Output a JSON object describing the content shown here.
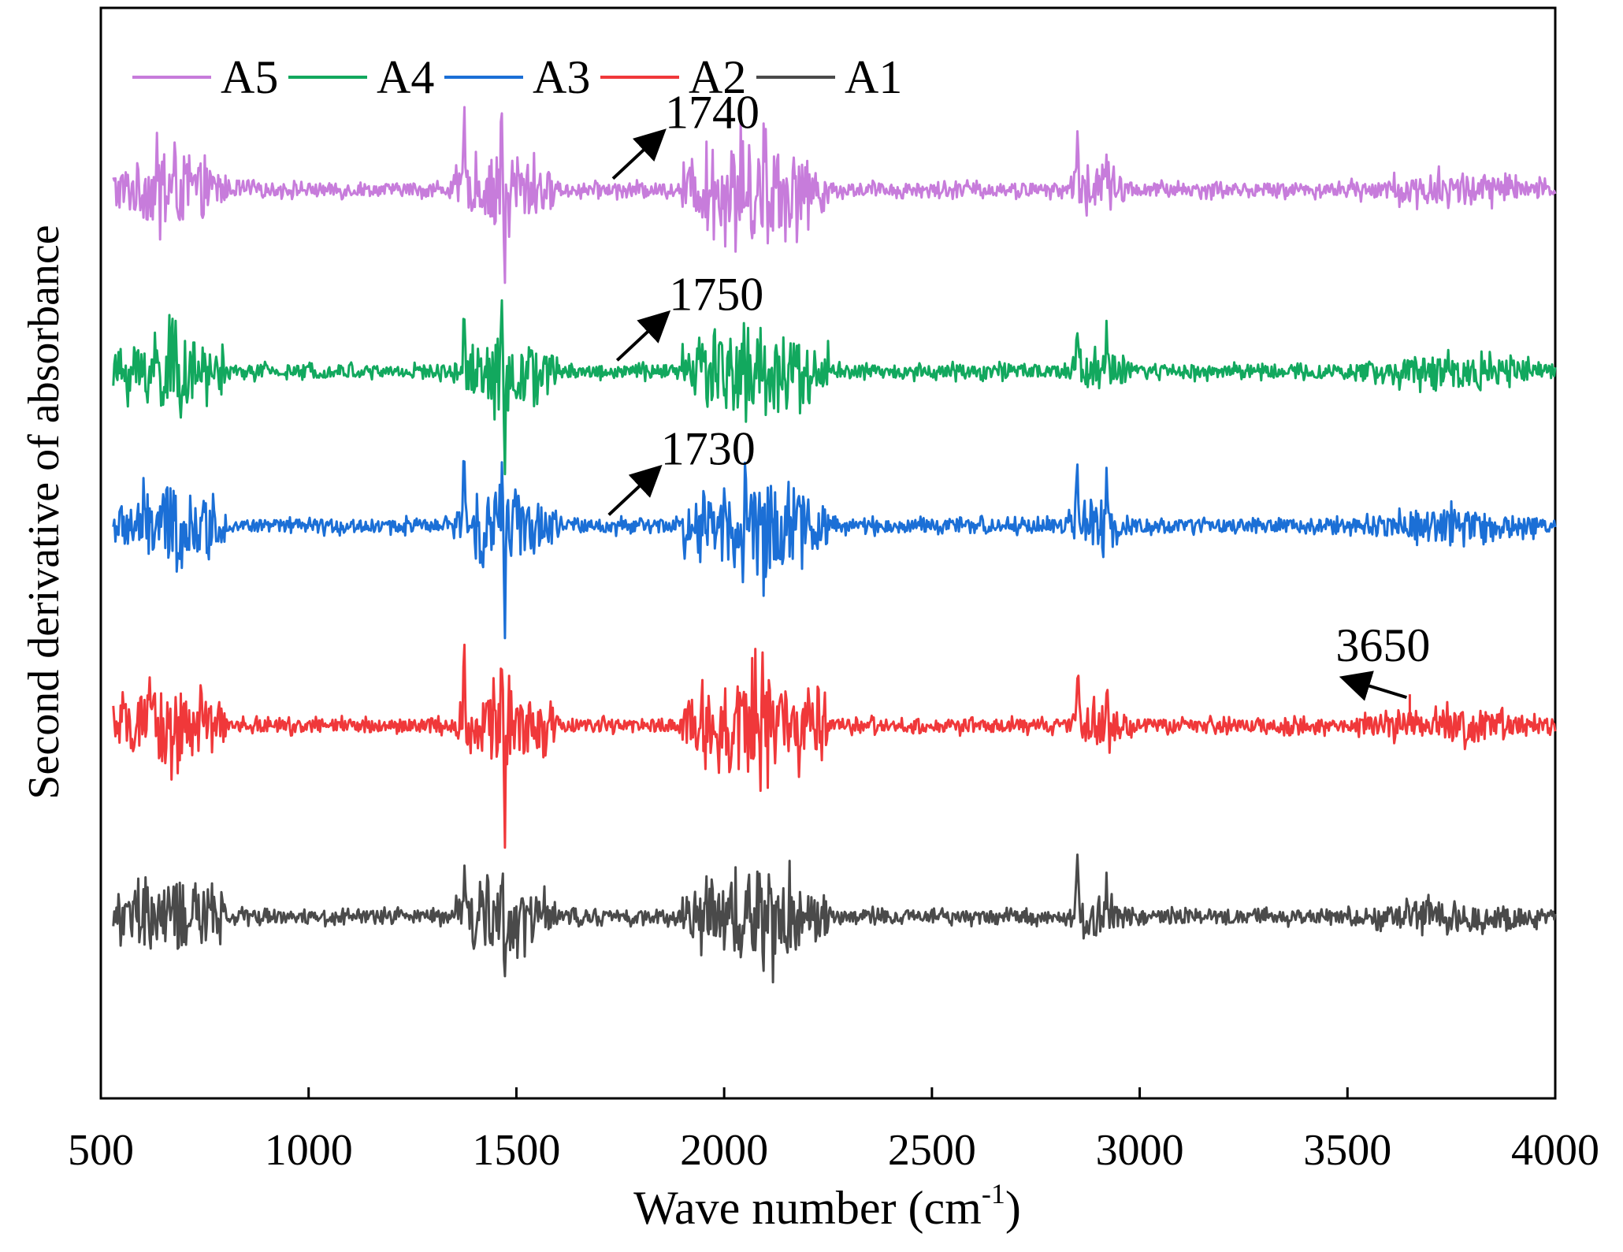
{
  "chart_data": {
    "type": "line",
    "title": "",
    "xlabel": "Wave number (cm",
    "xlabel_sup": "-1",
    "xlabel_close": ")",
    "ylabel": "Second derivative of absorbance",
    "xlim": [
      500,
      4000
    ],
    "ylim": [
      -1,
      5
    ],
    "x_ticks": [
      500,
      1000,
      1500,
      2000,
      2500,
      3000,
      3500,
      4000
    ],
    "x_tick_labels": [
      "500",
      "1000",
      "1500",
      "2000",
      "2500",
      "3000",
      "3500",
      "4000"
    ],
    "y_ticks_shown": false,
    "grid": false,
    "legend_position": "top-left",
    "note": "Stacked second-derivative spectra; vertical offsets are arbitrary (y axis unlabeled).",
    "series": [
      {
        "name": "A5",
        "color": "#C77CDB",
        "offset": 4.0
      },
      {
        "name": "A4",
        "color": "#12A85E",
        "offset": 3.0
      },
      {
        "name": "A3",
        "color": "#1B6FD6",
        "offset": 2.15
      },
      {
        "name": "A2",
        "color": "#F0383A",
        "offset": 1.05
      },
      {
        "name": "A1",
        "color": "#4A4A4A",
        "offset": 0.0
      }
    ],
    "peaks": [
      {
        "x": 1375,
        "amp": 0.38
      },
      {
        "x": 1465,
        "amp": 0.45
      },
      {
        "x": 1472,
        "amp": -0.55
      },
      {
        "x": 2850,
        "amp": 0.32
      },
      {
        "x": 2920,
        "amp": 0.22
      }
    ],
    "noisy_regions": [
      {
        "from": 520,
        "to": 800,
        "amp": 0.22
      },
      {
        "from": 1350,
        "to": 1600,
        "amp": 0.2
      },
      {
        "from": 1900,
        "to": 2250,
        "amp": 0.28
      },
      {
        "from": 2820,
        "to": 2980,
        "amp": 0.12
      },
      {
        "from": 3500,
        "to": 4000,
        "amp": 0.09
      }
    ],
    "annotations": [
      {
        "text": "1740",
        "series": "A5",
        "x": 1740
      },
      {
        "text": "1750",
        "series": "A4",
        "x": 1750
      },
      {
        "text": "1730",
        "series": "A3",
        "x": 1730
      },
      {
        "text": "3650",
        "series": "A2",
        "x": 3650
      }
    ]
  }
}
